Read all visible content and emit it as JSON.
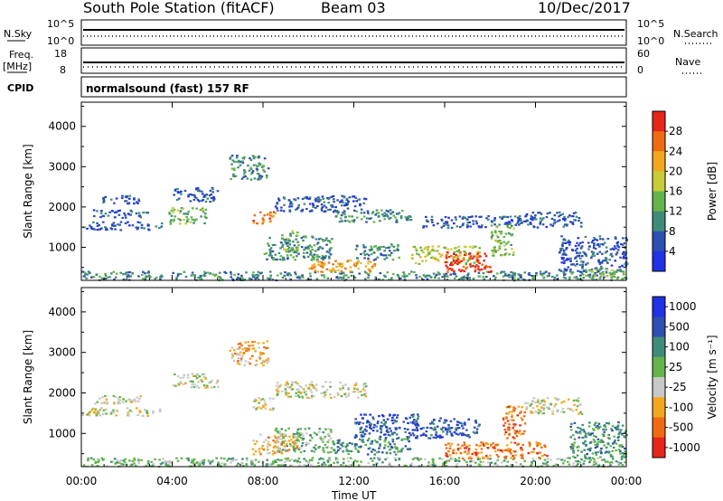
{
  "header": {
    "station": "South Pole Station (fitACF)",
    "beam": "Beam 03",
    "date": "10/Dec/2017"
  },
  "strip": {
    "nsky_label": "N.Sky",
    "nsearch_label": "N.Search",
    "freq_label": "Freq.",
    "freq_unit": "[MHz]",
    "nave_label": "Nave",
    "cpid_label": "CPID",
    "noise_ticks": [
      "10^5",
      "10^0"
    ],
    "freq_ticks": [
      "18",
      "8"
    ],
    "nave_ticks": [
      "60",
      "0"
    ],
    "cpid_text": "normalsound (fast) 157 RF"
  },
  "colors": {
    "power": [
      "#1f32e6",
      "#2d4fb0",
      "#3f8b7a",
      "#63b44a",
      "#c9cc38",
      "#f2a71d",
      "#f06a12",
      "#e7251a"
    ],
    "velocity": [
      "#e7251a",
      "#f06a12",
      "#f2a71d",
      "#c8c8c8",
      "#63b44a",
      "#3f8b7a",
      "#2d4fb0",
      "#1f32e6"
    ]
  },
  "chart_data": [
    {
      "type": "heatmap",
      "panel": "power",
      "xlabel": "Time UT",
      "ylabel": "Slant Range [km]",
      "ylim": [
        180,
        4600
      ],
      "xlim": [
        0,
        24
      ],
      "x_ticks": [
        "00:00",
        "04:00",
        "08:00",
        "12:00",
        "16:00",
        "20:00",
        "00:00"
      ],
      "y_ticks": [
        1000,
        2000,
        3000,
        4000
      ],
      "colorbar_label": "Power [dB]",
      "colorbar_ticks": [
        "4",
        "8",
        "12",
        "16",
        "20",
        "24",
        "28"
      ],
      "colorbar_range": [
        0,
        32
      ],
      "regions": [
        {
          "t0": 0.0,
          "t1": 24.0,
          "r0": 200,
          "r1": 420,
          "level": 2
        },
        {
          "t0": 0.0,
          "t1": 3.5,
          "r0": 1450,
          "r1": 1650,
          "level": 1
        },
        {
          "t0": 0.5,
          "t1": 3.0,
          "r0": 1750,
          "r1": 1950,
          "level": 1
        },
        {
          "t0": 0.7,
          "t1": 2.5,
          "r0": 2100,
          "r1": 2300,
          "level": 1
        },
        {
          "t0": 3.8,
          "t1": 5.5,
          "r0": 1600,
          "r1": 2000,
          "level": 3
        },
        {
          "t0": 4.0,
          "t1": 6.0,
          "r0": 2150,
          "r1": 2500,
          "level": 1
        },
        {
          "t0": 6.5,
          "t1": 8.2,
          "r0": 2700,
          "r1": 3300,
          "level": 2
        },
        {
          "t0": 7.5,
          "t1": 8.5,
          "r0": 1600,
          "r1": 1900,
          "level": 6
        },
        {
          "t0": 8.0,
          "t1": 11.0,
          "r0": 700,
          "r1": 1300,
          "level": 2
        },
        {
          "t0": 8.8,
          "t1": 9.5,
          "r0": 900,
          "r1": 1450,
          "level": 3
        },
        {
          "t0": 8.5,
          "t1": 12.5,
          "r0": 1900,
          "r1": 2300,
          "level": 1
        },
        {
          "t0": 10.0,
          "t1": 13.0,
          "r0": 400,
          "r1": 700,
          "level": 5
        },
        {
          "t0": 11.0,
          "t1": 14.5,
          "r0": 1650,
          "r1": 1950,
          "level": 2
        },
        {
          "t0": 12.0,
          "t1": 14.0,
          "r0": 700,
          "r1": 1100,
          "level": 2
        },
        {
          "t0": 14.5,
          "t1": 17.5,
          "r0": 600,
          "r1": 1050,
          "level": 4
        },
        {
          "t0": 16.0,
          "t1": 18.0,
          "r0": 400,
          "r1": 900,
          "level": 7
        },
        {
          "t0": 15.0,
          "t1": 19.5,
          "r0": 1500,
          "r1": 1800,
          "level": 1
        },
        {
          "t0": 18.0,
          "t1": 19.0,
          "r0": 800,
          "r1": 1600,
          "level": 3
        },
        {
          "t0": 19.5,
          "t1": 22.0,
          "r0": 1500,
          "r1": 1900,
          "level": 1
        },
        {
          "t0": 21.0,
          "t1": 24.0,
          "r0": 400,
          "r1": 1300,
          "level": 1
        },
        {
          "t0": 22.0,
          "t1": 24.0,
          "r0": 300,
          "r1": 500,
          "level": 3
        }
      ]
    },
    {
      "type": "heatmap",
      "panel": "velocity",
      "xlabel": "Time UT",
      "ylabel": "Slant Range [km]",
      "ylim": [
        180,
        4600
      ],
      "xlim": [
        0,
        24
      ],
      "x_ticks": [
        "00:00",
        "04:00",
        "08:00",
        "12:00",
        "16:00",
        "20:00",
        "00:00"
      ],
      "y_ticks": [
        1000,
        2000,
        3000,
        4000
      ],
      "colorbar_label": "Velocity [m s⁻¹]",
      "colorbar_ticks": [
        "1000",
        "500",
        "100",
        "25",
        "-25",
        "-100",
        "-500",
        "-1000"
      ],
      "regions": [
        {
          "t0": 0.0,
          "t1": 24.0,
          "r0": 200,
          "r1": 420,
          "level": 4
        },
        {
          "t0": 0.0,
          "t1": 3.5,
          "r0": 1450,
          "r1": 1650,
          "level": 3
        },
        {
          "t0": 0.5,
          "t1": 3.0,
          "r0": 1750,
          "r1": 1950,
          "level": 3
        },
        {
          "t0": 4.0,
          "t1": 6.0,
          "r0": 2150,
          "r1": 2500,
          "level": 3
        },
        {
          "t0": 6.5,
          "t1": 8.2,
          "r0": 2700,
          "r1": 3300,
          "level": 2
        },
        {
          "t0": 7.5,
          "t1": 8.5,
          "r0": 1600,
          "r1": 1900,
          "level": 3
        },
        {
          "t0": 7.5,
          "t1": 9.5,
          "r0": 500,
          "r1": 1000,
          "level": 2
        },
        {
          "t0": 8.5,
          "t1": 11.0,
          "r0": 550,
          "r1": 1150,
          "level": 4
        },
        {
          "t0": 8.5,
          "t1": 12.5,
          "r0": 1900,
          "r1": 2300,
          "level": 3
        },
        {
          "t0": 11.0,
          "t1": 14.5,
          "r0": 500,
          "r1": 900,
          "level": 5
        },
        {
          "t0": 12.0,
          "t1": 15.0,
          "r0": 900,
          "r1": 1500,
          "level": 6
        },
        {
          "t0": 15.0,
          "t1": 17.5,
          "r0": 900,
          "r1": 1400,
          "level": 6
        },
        {
          "t0": 16.0,
          "t1": 20.5,
          "r0": 400,
          "r1": 800,
          "level": 1
        },
        {
          "t0": 18.5,
          "t1": 19.5,
          "r0": 900,
          "r1": 1700,
          "level": 1
        },
        {
          "t0": 19.5,
          "t1": 22.0,
          "r0": 1500,
          "r1": 1900,
          "level": 3
        },
        {
          "t0": 21.5,
          "t1": 24.0,
          "r0": 400,
          "r1": 1300,
          "level": 5
        }
      ]
    }
  ]
}
